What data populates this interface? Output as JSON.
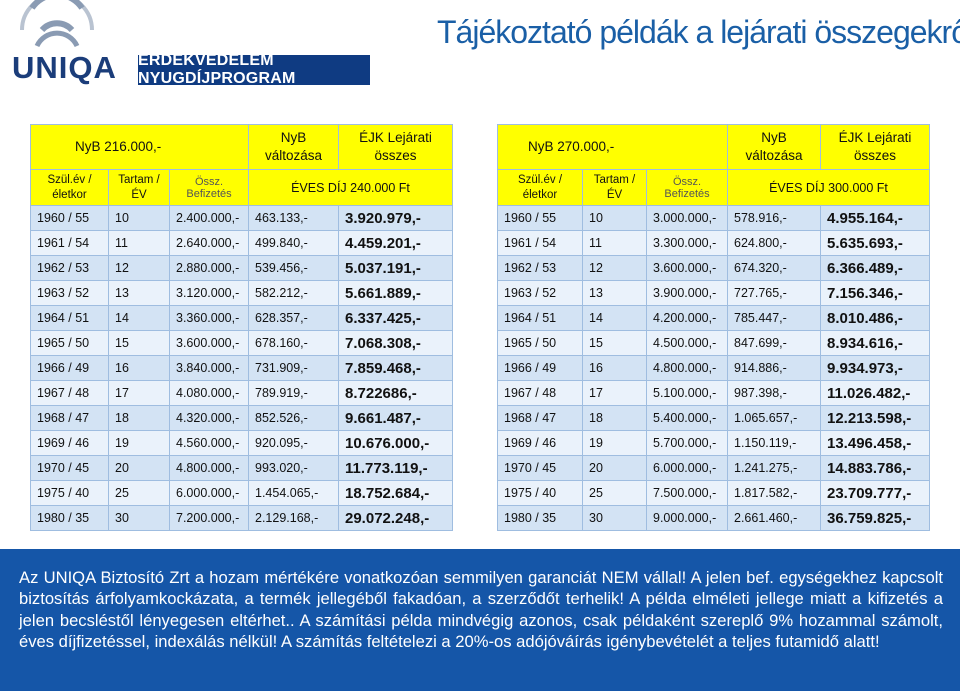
{
  "header": {
    "brand": "UNIQA",
    "program": "ÉRDEKVÉDELEM NYUGDÍJPROGRAM",
    "title": "Tájékoztató példák a lejárati összegekről",
    "colors": {
      "brand_blue": "#1b3d7a",
      "title_blue": "#1a5fa6",
      "banner": "#0f3b82"
    }
  },
  "tables": [
    {
      "nyb": "NyB 216.000,-",
      "nyb_change_label": "NyB változása",
      "ejk_label": "ÉJK Lejárati összes",
      "col_birth": "Szül.év /életkor",
      "col_term": "Tartam /ÉV",
      "col_total": "Össz. Befizetés",
      "annual_fee": "ÉVES DÍJ 240.000 Ft",
      "rows": [
        [
          "1960 / 55",
          "10",
          "2.400.000,-",
          "463.133,-",
          "3.920.979,-"
        ],
        [
          "1961 / 54",
          "11",
          "2.640.000,-",
          "499.840,-",
          "4.459.201,-"
        ],
        [
          "1962 / 53",
          "12",
          "2.880.000,-",
          "539.456,-",
          "5.037.191,-"
        ],
        [
          "1963 / 52",
          "13",
          "3.120.000,-",
          "582.212,-",
          "5.661.889,-"
        ],
        [
          "1964 / 51",
          "14",
          "3.360.000,-",
          "628.357,-",
          "6.337.425,-"
        ],
        [
          "1965 / 50",
          "15",
          "3.600.000,-",
          "678.160,-",
          "7.068.308,-"
        ],
        [
          "1966 / 49",
          "16",
          "3.840.000,-",
          "731.909,-",
          "7.859.468,-"
        ],
        [
          "1967 / 48",
          "17",
          "4.080.000,-",
          "789.919,-",
          "8.722686,-"
        ],
        [
          "1968 / 47",
          "18",
          "4.320.000,-",
          "852.526,-",
          "9.661.487,-"
        ],
        [
          "1969 / 46",
          "19",
          "4.560.000,-",
          "920.095,-",
          "10.676.000,-"
        ],
        [
          "1970 / 45",
          "20",
          "4.800.000,-",
          "993.020,-",
          "11.773.119,-"
        ],
        [
          "1975 / 40",
          "25",
          "6.000.000,-",
          "1.454.065,-",
          "18.752.684,-"
        ],
        [
          "1980 / 35",
          "30",
          "7.200.000,-",
          "2.129.168,-",
          "29.072.248,-"
        ]
      ]
    },
    {
      "nyb": "NyB 270.000,-",
      "nyb_change_label": "NyB változása",
      "ejk_label": "ÉJK Lejárati összes",
      "col_birth": "Szül.év /életkor",
      "col_term": "Tartam /ÉV",
      "col_total": "Össz. Befizetés",
      "annual_fee": "ÉVES DÍJ 300.000 Ft",
      "rows": [
        [
          "1960 / 55",
          "10",
          "3.000.000,-",
          "578.916,-",
          "4.955.164,-"
        ],
        [
          "1961 / 54",
          "11",
          "3.300.000,-",
          "624.800,-",
          "5.635.693,-"
        ],
        [
          "1962 / 53",
          "12",
          "3.600.000,-",
          "674.320,-",
          "6.366.489,-"
        ],
        [
          "1963 / 52",
          "13",
          "3.900.000,-",
          "727.765,-",
          "7.156.346,-"
        ],
        [
          "1964 / 51",
          "14",
          "4.200.000,-",
          "785.447,-",
          "8.010.486,-"
        ],
        [
          "1965 / 50",
          "15",
          "4.500.000,-",
          "847.699,-",
          "8.934.616,-"
        ],
        [
          "1966 / 49",
          "16",
          "4.800.000,-",
          "914.886,-",
          "9.934.973,-"
        ],
        [
          "1967 / 48",
          "17",
          "5.100.000,-",
          "987.398,-",
          "11.026.482,-"
        ],
        [
          "1968 / 47",
          "18",
          "5.400.000,-",
          "1.065.657,-",
          "12.213.598,-"
        ],
        [
          "1969 / 46",
          "19",
          "5.700.000,-",
          "1.150.119,-",
          "13.496.458,-"
        ],
        [
          "1970 / 45",
          "20",
          "6.000.000,-",
          "1.241.275,-",
          "14.883.786,-"
        ],
        [
          "1975 / 40",
          "25",
          "7.500.000,-",
          "1.817.582,-",
          "23.709.777,-"
        ],
        [
          "1980 / 35",
          "30",
          "9.000.000,-",
          "2.661.460,-",
          "36.759.825,-"
        ]
      ]
    }
  ],
  "footer": {
    "disclaimer": "Az UNIQA Biztosító Zrt a hozam mértékére vonatkozóan semmilyen garanciát NEM vállal! A jelen bef. egységekhez kapcsolt biztosítás árfolyamkockázata, a termék jellegéből fakadóan, a szerződőt terhelik! A példa elméleti jellege miatt a kifizetés a jelen becsléstől lényegesen eltérhet.. A számítási példa mindvégig azonos, csak példaként szereplő 9% hozammal számolt, éves díjfizetéssel, indexálás nélkül! A számítás feltételezi a 20%-os adójóváírás igénybevételét a teljes futamidő alatt!",
    "colors": {
      "background": "#1556a8",
      "table_header": "#ffff00",
      "row_odd": "#d3e3f4",
      "row_even": "#eaf2fb"
    }
  }
}
